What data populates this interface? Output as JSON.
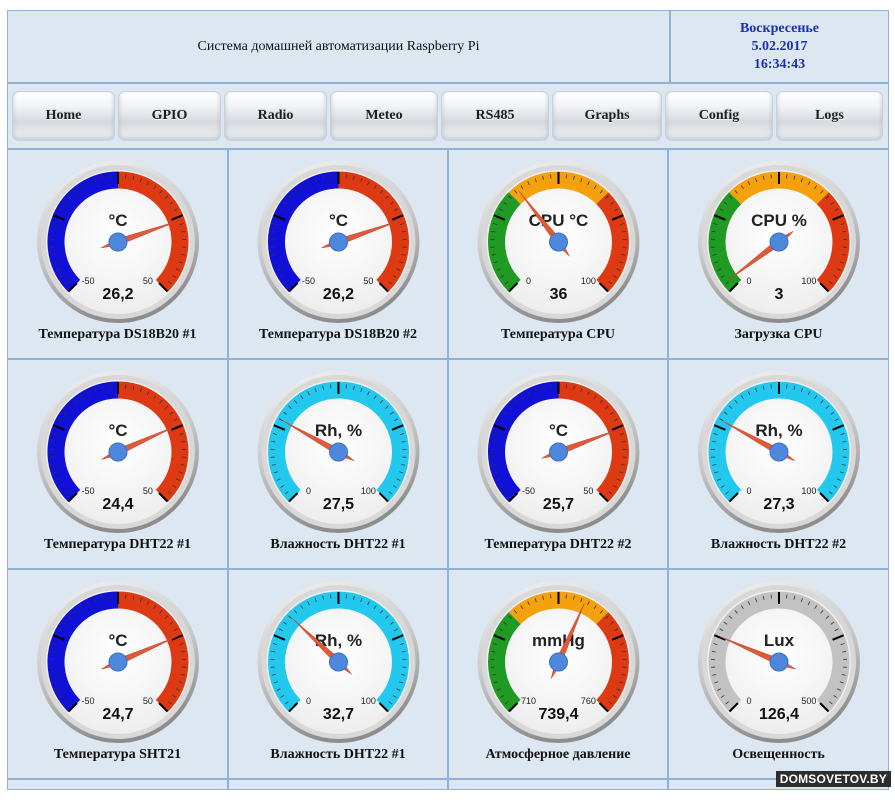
{
  "header": {
    "title": "Система домашней автоматизации Raspberry Pi",
    "day": "Воскресенье",
    "date": "5.02.2017",
    "time": "16:34:43"
  },
  "nav": [
    {
      "label": "Home"
    },
    {
      "label": "GPIO"
    },
    {
      "label": "Radio"
    },
    {
      "label": "Meteo"
    },
    {
      "label": "RS485"
    },
    {
      "label": "Graphs"
    },
    {
      "label": "Config"
    },
    {
      "label": "Logs"
    }
  ],
  "gauges": [
    {
      "label": "Температура DS18B20 #1",
      "unit": "°C",
      "min": -50,
      "max": 50,
      "min_label": "-50",
      "max_label": "50",
      "value": 26.2,
      "value_text": "26,2",
      "scheme": "temp"
    },
    {
      "label": "Температура DS18B20 #2",
      "unit": "°C",
      "min": -50,
      "max": 50,
      "min_label": "-50",
      "max_label": "50",
      "value": 26.2,
      "value_text": "26,2",
      "scheme": "temp"
    },
    {
      "label": "Температура CPU",
      "unit": "CPU °C",
      "min": 0,
      "max": 100,
      "min_label": "0",
      "max_label": "100",
      "value": 36,
      "value_text": "36",
      "scheme": "traffic"
    },
    {
      "label": "Загрузка CPU",
      "unit": "CPU %",
      "min": 0,
      "max": 100,
      "min_label": "0",
      "max_label": "100",
      "value": 3,
      "value_text": "3",
      "scheme": "traffic"
    },
    {
      "label": "Температура DHT22 #1",
      "unit": "°C",
      "min": -50,
      "max": 50,
      "min_label": "-50",
      "max_label": "50",
      "value": 24.4,
      "value_text": "24,4",
      "scheme": "temp"
    },
    {
      "label": "Влажность DHT22 #1",
      "unit": "Rh, %",
      "min": 0,
      "max": 100,
      "min_label": "0",
      "max_label": "100",
      "value": 27.5,
      "value_text": "27,5",
      "scheme": "humid"
    },
    {
      "label": "Температура DHT22 #2",
      "unit": "°C",
      "min": -50,
      "max": 50,
      "min_label": "-50",
      "max_label": "50",
      "value": 25.7,
      "value_text": "25,7",
      "scheme": "temp"
    },
    {
      "label": "Влажность DHT22 #2",
      "unit": "Rh, %",
      "min": 0,
      "max": 100,
      "min_label": "0",
      "max_label": "100",
      "value": 27.3,
      "value_text": "27,3",
      "scheme": "humid"
    },
    {
      "label": "Температура SHT21",
      "unit": "°C",
      "min": -50,
      "max": 50,
      "min_label": "-50",
      "max_label": "50",
      "value": 24.7,
      "value_text": "24,7",
      "scheme": "temp"
    },
    {
      "label": "Влажность DHT22 #1",
      "unit": "Rh, %",
      "min": 0,
      "max": 100,
      "min_label": "0",
      "max_label": "100",
      "value": 32.7,
      "value_text": "32,7",
      "scheme": "humid"
    },
    {
      "label": "Атмосферное давление",
      "unit": "mmHg",
      "min": 710,
      "max": 760,
      "min_label": "710",
      "max_label": "760",
      "value": 739.4,
      "value_text": "739,4",
      "scheme": "traffic"
    },
    {
      "label": "Освещенность",
      "unit": "Lux",
      "min": 0,
      "max": 500,
      "min_label": "0",
      "max_label": "500",
      "value": 126.4,
      "value_text": "126,4",
      "scheme": "lux"
    }
  ],
  "colors": {
    "cell_bg": "#dce7f2",
    "cell_border": "#8fb1d5",
    "header_date": "#1a2fb8",
    "cold": "#1010d6",
    "hot": "#dd3a14",
    "green": "#1f9a22",
    "orange": "#f5a10e",
    "red": "#dd3a14",
    "humid": "#23c8ef",
    "lux": "#c2c2c2",
    "needle": "#e05a3a",
    "hub": "#4e88dd"
  },
  "watermark": "DOMSOVETOV.BY"
}
